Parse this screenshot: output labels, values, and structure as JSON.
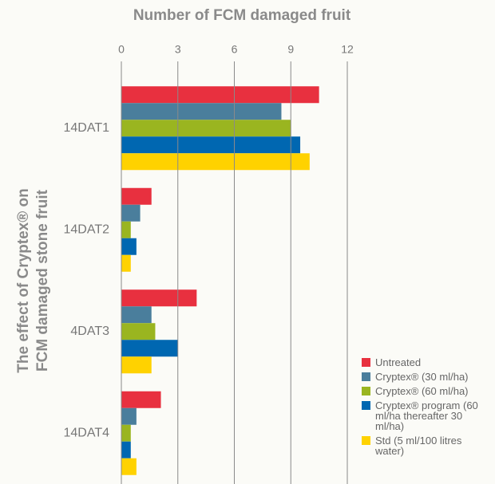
{
  "chart_data": {
    "type": "bar",
    "orientation": "horizontal",
    "title": "Number of FCM damaged fruit",
    "y_label": [
      "The effect of Cryptex® on",
      "FCM damaged stone fruit"
    ],
    "categories": [
      "14DAT1",
      "14DAT2",
      "4DAT3",
      "14DAT4"
    ],
    "series": [
      {
        "name": "Untreated",
        "color": "#e8303f",
        "values": [
          10.5,
          1.6,
          4.0,
          2.1
        ]
      },
      {
        "name": "Cryptex® (30 ml/ha)",
        "color": "#4a7e9c",
        "values": [
          8.5,
          1.0,
          1.6,
          0.8
        ]
      },
      {
        "name": "Cryptex® (60 ml/ha)",
        "color": "#9ab520",
        "values": [
          9.0,
          0.5,
          1.8,
          0.5
        ]
      },
      {
        "name": "Cryptex® program (60 ml/ha thereafter 30 ml/ha)",
        "color": "#0067b1",
        "values": [
          9.5,
          0.8,
          3.0,
          0.5
        ]
      },
      {
        "name": "Std (5 ml/100 litres water)",
        "color": "#ffd200",
        "values": [
          10.0,
          0.5,
          1.6,
          0.8
        ]
      }
    ],
    "xlim": [
      0,
      12
    ],
    "xticks": [
      0,
      3,
      6,
      9,
      12
    ],
    "grid": true,
    "legend": "bottom-right"
  }
}
